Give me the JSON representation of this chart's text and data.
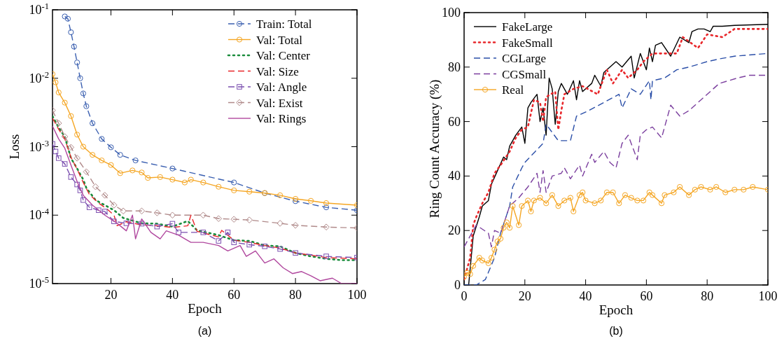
{
  "chart_data": [
    {
      "type": "line",
      "xlabel": "Epoch",
      "ylabel": "Loss",
      "log": "y",
      "xlim": [
        1,
        100
      ],
      "xticks": [
        20,
        40,
        60,
        80,
        100
      ],
      "ylim": [
        1e-05,
        0.1
      ],
      "yticks": [
        {
          "value": 1e-05,
          "label": "10$^{-5}$"
        },
        {
          "value": 0.0001,
          "label": "10$^{-4}$"
        },
        {
          "value": 0.001,
          "label": "10$^{-3}$"
        },
        {
          "value": 0.01,
          "label": "10$^{-2}$"
        },
        {
          "value": 0.1,
          "label": "10$^{-1}$"
        }
      ],
      "legend": "top right",
      "grid": false,
      "annotations": [
        "(a)"
      ],
      "series": [
        {
          "name": "Train: Total",
          "color": "#3a5fb0",
          "marker": "circle",
          "line_style": "dashed",
          "x": [
            5,
            6,
            7,
            8,
            9,
            10,
            11,
            12,
            14,
            17,
            20,
            23,
            28,
            40,
            60,
            70,
            80,
            90,
            100
          ],
          "values": [
            0.08,
            0.074,
            0.047,
            0.029,
            0.017,
            0.01,
            0.006,
            0.0039,
            0.0022,
            0.0013,
            0.00098,
            0.00076,
            0.00063,
            0.00048,
            0.0003,
            0.00021,
            0.00016,
            0.00013,
            0.000118
          ]
        },
        {
          "name": "Val: Total",
          "color": "#f5a623",
          "marker": "circle",
          "line_style": "solid",
          "x": [
            1,
            2,
            3,
            5,
            7,
            9,
            11,
            14,
            17,
            20,
            23,
            27,
            30,
            32,
            36,
            40,
            44,
            46,
            50,
            55,
            60,
            65,
            70,
            75,
            80,
            85,
            90,
            100
          ],
          "values": [
            0.0115,
            0.0087,
            0.0062,
            0.0044,
            0.0028,
            0.0015,
            0.001,
            0.00076,
            0.00063,
            0.00054,
            0.00041,
            0.00045,
            0.00042,
            0.00035,
            0.00036,
            0.00033,
            0.0003,
            0.00033,
            0.0003,
            0.00026,
            0.00023,
            0.00022,
            0.00021,
            0.000195,
            0.000173,
            0.000162,
            0.00015,
            0.00014
          ]
        },
        {
          "name": "Val: Center",
          "color": "#1a8c3c",
          "marker": "none",
          "line_style": "dotted",
          "x": [
            1,
            3,
            5,
            7,
            9,
            11,
            12,
            15,
            18,
            21,
            24,
            30,
            35,
            40,
            45,
            48,
            55,
            60,
            65,
            70,
            75,
            80,
            85,
            90,
            95,
            100
          ],
          "values": [
            0.0028,
            0.0019,
            0.0014,
            0.00068,
            0.00048,
            0.00033,
            0.00025,
            0.000166,
            0.00014,
            0.000118,
            9.1e-05,
            7.6e-05,
            7.5e-05,
            6.8e-05,
            8.2e-05,
            6e-05,
            5.1e-05,
            4.3e-05,
            4.2e-05,
            3.6e-05,
            3.5e-05,
            2.8e-05,
            2.5e-05,
            2.3e-05,
            2.2e-05,
            2.2e-05
          ]
        },
        {
          "name": "Val: Size",
          "color": "#e8262a",
          "marker": "none",
          "line_style": "dashed",
          "x": [
            1,
            3,
            5,
            7,
            9,
            11,
            13,
            16,
            19,
            21,
            22,
            25,
            30,
            35,
            40,
            45,
            46,
            48,
            55,
            56,
            60,
            65,
            70,
            75,
            80,
            85,
            90,
            100
          ],
          "values": [
            0.0026,
            0.0018,
            0.0013,
            0.0007,
            0.00047,
            0.0003,
            0.0002,
            0.00015,
            0.00012,
            0.0001,
            7e-05,
            8e-05,
            7.2e-05,
            7e-05,
            6.6e-05,
            7e-05,
            0.0001,
            5.8e-05,
            4.8e-05,
            6e-05,
            4.3e-05,
            4e-05,
            3.6e-05,
            3.3e-05,
            2.8e-05,
            2.6e-05,
            2.4e-05,
            2.3e-05
          ]
        },
        {
          "name": "Val: Angle",
          "color": "#7b4fb0",
          "marker": "square",
          "line_style": "dashed",
          "x": [
            1,
            2,
            3,
            5,
            7,
            9,
            10,
            11,
            13,
            16,
            18,
            21,
            25,
            30,
            35,
            40,
            42,
            50,
            55,
            58,
            60,
            65,
            70,
            75,
            80,
            90,
            100
          ],
          "values": [
            0.0011,
            0.00085,
            0.00068,
            0.00056,
            0.00036,
            0.00028,
            0.00023,
            0.000166,
            0.00013,
            0.000118,
            0.000113,
            8.1e-05,
            7.6e-05,
            7.5e-05,
            6.8e-05,
            7.5e-05,
            5.6e-05,
            5.6e-05,
            4.2e-05,
            5.6e-05,
            4e-05,
            3.7e-05,
            3.5e-05,
            3.2e-05,
            2.8e-05,
            2.5e-05,
            2.4e-05
          ]
        },
        {
          "name": "Val: Exist",
          "color": "#b08a8a",
          "marker": "diamond",
          "line_style": "dashed",
          "x": [
            1,
            3,
            5,
            7,
            9,
            12,
            15,
            18,
            21,
            24,
            30,
            35,
            40,
            50,
            55,
            60,
            65,
            75,
            80,
            90,
            100
          ],
          "values": [
            0.0034,
            0.0022,
            0.0014,
            0.00098,
            0.00068,
            0.00043,
            0.00026,
            0.000195,
            0.00014,
            0.000115,
            0.000115,
            0.000108,
            0.0001,
            0.0001,
            8.9e-05,
            8.7e-05,
            8.5e-05,
            7.6e-05,
            7.1e-05,
            6.7e-05,
            6.5e-05
          ]
        },
        {
          "name": "Val: Rings",
          "color": "#b0479e",
          "marker": "none",
          "line_style": "solid",
          "x": [
            1,
            3,
            5,
            7,
            9,
            11,
            14,
            18,
            22,
            25,
            27,
            28,
            30,
            33,
            36,
            38,
            42,
            46,
            50,
            55,
            58,
            62,
            64,
            67,
            70,
            73,
            76,
            79,
            82,
            85,
            88,
            92,
            95,
            100
          ],
          "values": [
            0.002,
            0.0013,
            0.00095,
            0.00054,
            0.00031,
            0.000195,
            0.00014,
            0.0001,
            7.6e-05,
            5.9e-05,
            0.0001,
            4.5e-05,
            8.8e-05,
            5.6e-05,
            4.5e-05,
            5.9e-05,
            5.1e-05,
            4e-05,
            4e-05,
            3.6e-05,
            3e-05,
            3.6e-05,
            2.5e-05,
            3e-05,
            2e-05,
            2.3e-05,
            1.7e-05,
            1.4e-05,
            1.5e-05,
            1.3e-05,
            1.1e-05,
            1.2e-05,
            1e-05,
            1e-05
          ]
        }
      ]
    },
    {
      "type": "line",
      "xlabel": "Epoch",
      "ylabel": "Ring Count Accuracy (%)",
      "xlim": [
        0,
        100
      ],
      "xticks": [
        0,
        20,
        40,
        60,
        80,
        100
      ],
      "ylim": [
        0,
        100
      ],
      "yticks": [
        0,
        20,
        40,
        60,
        80,
        100
      ],
      "legend": "top left",
      "grid": false,
      "annotations": [
        "(b)"
      ],
      "series": [
        {
          "name": "FakeLarge",
          "color": "#000000",
          "marker": "none",
          "line_style": "solid",
          "x": [
            1.5,
            3,
            5,
            6,
            8,
            9,
            11,
            13,
            14,
            15,
            17,
            19,
            20,
            21,
            22,
            24,
            25,
            26,
            27,
            28,
            29,
            30,
            31,
            32,
            34,
            36,
            37,
            38,
            39,
            42,
            43,
            45,
            46,
            50,
            52,
            55,
            56,
            58,
            60,
            61,
            62,
            63,
            65,
            68,
            71,
            74,
            75,
            77,
            79,
            81,
            82,
            85,
            89,
            100
          ],
          "values": [
            0,
            18,
            25,
            29,
            31,
            37,
            42,
            47,
            46,
            51,
            55,
            58,
            52,
            65,
            67,
            70,
            60,
            65,
            55,
            76,
            72,
            59,
            71,
            74,
            70,
            75,
            68,
            75,
            71,
            74,
            77,
            73,
            78,
            82,
            80,
            84,
            76,
            85,
            79,
            87,
            82,
            88,
            89,
            84,
            91,
            89,
            93,
            94,
            94,
            93,
            95,
            95,
            95.3,
            95.7
          ]
        },
        {
          "name": "FakeSmall",
          "color": "#e8262a",
          "marker": "none",
          "line_style": "dotted",
          "x": [
            0,
            2,
            3,
            4,
            6,
            8,
            10,
            12,
            15,
            17,
            19,
            21,
            23,
            25,
            26,
            27,
            30,
            31,
            32,
            33,
            36,
            39,
            44,
            47,
            49,
            52,
            54,
            57,
            59,
            62,
            66,
            70,
            72,
            77,
            80,
            85,
            89,
            100
          ],
          "values": [
            2,
            10,
            22,
            25,
            30,
            34,
            41,
            44,
            49,
            54,
            57,
            58,
            68,
            67,
            60,
            69,
            71,
            57,
            64,
            70,
            72,
            73,
            70,
            79,
            74,
            79,
            76,
            79,
            82,
            85,
            85,
            85,
            91,
            87,
            92,
            91,
            94,
            94
          ]
        },
        {
          "name": "CGLarge",
          "color": "#2b4fa8",
          "marker": "none",
          "line_style": "dashed",
          "x": [
            0,
            4,
            7,
            10,
            12,
            15,
            16,
            19,
            20,
            26,
            27,
            31,
            35,
            37,
            41,
            46,
            51,
            52,
            55,
            58,
            61,
            61.5,
            62,
            66,
            70,
            74,
            77,
            80,
            84,
            89,
            100
          ],
          "values": [
            0,
            0,
            2,
            10,
            19,
            29,
            36,
            43,
            45,
            52,
            59,
            53,
            53,
            62,
            64,
            67,
            70,
            65,
            72,
            70,
            75,
            68,
            75,
            76,
            79,
            80,
            81,
            82,
            83,
            84,
            85
          ]
        },
        {
          "name": "CGSmall",
          "color": "#7b3f9e",
          "marker": "none",
          "line_style": "dashed",
          "x": [
            0,
            4,
            8,
            9,
            10,
            12,
            15,
            18,
            21,
            24,
            25,
            26,
            27,
            29,
            32,
            33,
            35,
            38,
            39,
            42,
            43,
            46,
            48,
            50,
            52,
            54,
            57,
            58,
            60,
            62,
            65,
            68,
            71,
            74,
            78,
            80,
            84,
            87,
            90,
            94,
            100
          ],
          "values": [
            14,
            22,
            19,
            14,
            20,
            19,
            29,
            32,
            36,
            41,
            34,
            42,
            34,
            40,
            41,
            43,
            39,
            44,
            40,
            48,
            45,
            49,
            45,
            43,
            52,
            55,
            46,
            55,
            57,
            58,
            54,
            66,
            62,
            64,
            68,
            70,
            74,
            75,
            76,
            77,
            77
          ]
        },
        {
          "name": "Real",
          "color": "#f5a623",
          "marker": "circle",
          "line_style": "solid",
          "x": [
            0,
            1,
            2,
            3,
            5,
            6,
            8,
            9,
            10,
            11,
            12,
            13,
            14,
            15,
            16,
            18,
            19,
            21,
            22,
            23,
            25,
            27,
            29,
            31,
            33,
            35,
            36,
            38,
            39,
            40,
            43,
            45,
            47,
            49,
            51,
            53,
            55,
            57,
            59,
            61,
            62,
            65,
            66,
            69,
            71,
            74,
            76,
            78,
            81,
            83,
            86,
            89,
            92,
            95,
            100
          ],
          "values": [
            3,
            4.5,
            4,
            7,
            10,
            9,
            8,
            10,
            13,
            16,
            17,
            21,
            23,
            21,
            29,
            22,
            29,
            31,
            27,
            31,
            32,
            30,
            33,
            29,
            31,
            32,
            27,
            33,
            34,
            31,
            30,
            31,
            34,
            34,
            30,
            33,
            32,
            31,
            31,
            34,
            33,
            30,
            33,
            34,
            36,
            33,
            35,
            36,
            35,
            36,
            34,
            35,
            35,
            36,
            35
          ]
        }
      ]
    }
  ]
}
